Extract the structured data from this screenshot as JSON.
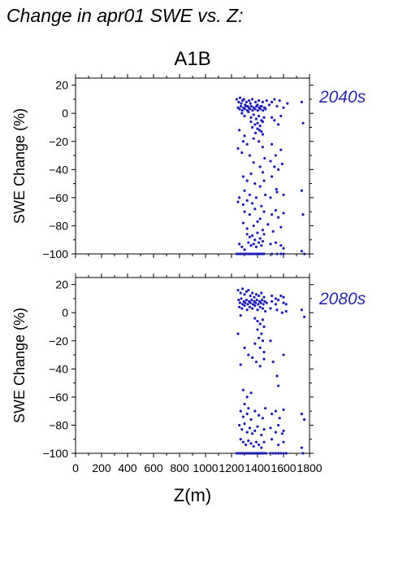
{
  "figure_title": "Change in apr01 SWE vs. Z:",
  "scenario": "A1B",
  "point_color": "#1f1fb4",
  "label_color": "#2a2aa8",
  "chart_data": [
    {
      "type": "scatter",
      "panel_label": "2040s",
      "ylabel": "SWE Change (%)",
      "xlabel": "",
      "xlim": [
        0,
        1800
      ],
      "ylim": [
        -100,
        25
      ],
      "xticks": [
        "0",
        "200",
        "400",
        "600",
        "800",
        "1000",
        "1200",
        "1400",
        "1600",
        "1800"
      ],
      "yticks": [
        "20",
        "0",
        "−20",
        "−40",
        "−60",
        "−80",
        "−100"
      ],
      "grid": false,
      "points": [
        [
          1240,
          10
        ],
        [
          1255,
          8
        ],
        [
          1265,
          11
        ],
        [
          1275,
          7
        ],
        [
          1285,
          9
        ],
        [
          1295,
          10
        ],
        [
          1305,
          6
        ],
        [
          1315,
          8
        ],
        [
          1325,
          5
        ],
        [
          1335,
          9
        ],
        [
          1345,
          7
        ],
        [
          1360,
          10
        ],
        [
          1370,
          4
        ],
        [
          1385,
          8
        ],
        [
          1400,
          6
        ],
        [
          1410,
          9
        ],
        [
          1425,
          5
        ],
        [
          1440,
          8
        ],
        [
          1455,
          4
        ],
        [
          1470,
          9
        ],
        [
          1490,
          6
        ],
        [
          1510,
          8
        ],
        [
          1530,
          10
        ],
        [
          1550,
          5
        ],
        [
          1570,
          9
        ],
        [
          1600,
          4
        ],
        [
          1630,
          7
        ],
        [
          1740,
          8
        ],
        [
          1250,
          4
        ],
        [
          1262,
          3
        ],
        [
          1272,
          5
        ],
        [
          1282,
          2
        ],
        [
          1292,
          4
        ],
        [
          1302,
          3
        ],
        [
          1312,
          5
        ],
        [
          1322,
          2
        ],
        [
          1332,
          4
        ],
        [
          1342,
          3
        ],
        [
          1352,
          5
        ],
        [
          1362,
          2
        ],
        [
          1372,
          4
        ],
        [
          1382,
          3
        ],
        [
          1392,
          5
        ],
        [
          1402,
          2
        ],
        [
          1412,
          4
        ],
        [
          1422,
          3
        ],
        [
          1432,
          5
        ],
        [
          1442,
          2
        ],
        [
          1452,
          4
        ],
        [
          1462,
          3
        ],
        [
          1280,
          0
        ],
        [
          1300,
          -2
        ],
        [
          1330,
          1
        ],
        [
          1350,
          -3
        ],
        [
          1370,
          -1
        ],
        [
          1390,
          -4
        ],
        [
          1410,
          -2
        ],
        [
          1430,
          -5
        ],
        [
          1450,
          -3
        ],
        [
          1350,
          -6
        ],
        [
          1380,
          -8
        ],
        [
          1400,
          -7
        ],
        [
          1420,
          -9
        ],
        [
          1440,
          -6
        ],
        [
          1360,
          -10
        ],
        [
          1415,
          -12
        ],
        [
          1385,
          -14
        ],
        [
          1440,
          -15
        ],
        [
          1400,
          -11
        ],
        [
          1430,
          -13
        ],
        [
          1510,
          -3
        ],
        [
          1530,
          -5
        ],
        [
          1560,
          -8
        ],
        [
          1580,
          -2
        ],
        [
          1750,
          -7
        ],
        [
          1260,
          -12
        ],
        [
          1300,
          -16
        ],
        [
          1290,
          -20
        ],
        [
          1320,
          -22
        ],
        [
          1250,
          -25
        ],
        [
          1280,
          -28
        ],
        [
          1340,
          -30
        ],
        [
          1370,
          -18
        ],
        [
          1410,
          -20
        ],
        [
          1440,
          -24
        ],
        [
          1455,
          -32
        ],
        [
          1510,
          -22
        ],
        [
          1540,
          -30
        ],
        [
          1580,
          -26
        ],
        [
          1370,
          -35
        ],
        [
          1420,
          -38
        ],
        [
          1440,
          -42
        ],
        [
          1500,
          -34
        ],
        [
          1530,
          -38
        ],
        [
          1560,
          -40
        ],
        [
          1590,
          -36
        ],
        [
          1290,
          -45
        ],
        [
          1320,
          -48
        ],
        [
          1350,
          -43
        ],
        [
          1380,
          -50
        ],
        [
          1420,
          -52
        ],
        [
          1450,
          -48
        ],
        [
          1510,
          -45
        ],
        [
          1545,
          -54
        ],
        [
          1300,
          -55
        ],
        [
          1340,
          -58
        ],
        [
          1260,
          -60
        ],
        [
          1250,
          -63
        ],
        [
          1290,
          -65
        ],
        [
          1320,
          -62
        ],
        [
          1360,
          -64
        ],
        [
          1390,
          -60
        ],
        [
          1430,
          -66
        ],
        [
          1460,
          -58
        ],
        [
          1500,
          -60
        ],
        [
          1550,
          -56
        ],
        [
          1600,
          -58
        ],
        [
          1740,
          -55
        ],
        [
          1300,
          -70
        ],
        [
          1340,
          -72
        ],
        [
          1380,
          -68
        ],
        [
          1420,
          -75
        ],
        [
          1450,
          -70
        ],
        [
          1510,
          -72
        ],
        [
          1540,
          -69
        ],
        [
          1560,
          -74
        ],
        [
          1600,
          -71
        ],
        [
          1750,
          -72
        ],
        [
          1290,
          -78
        ],
        [
          1320,
          -82
        ],
        [
          1370,
          -80
        ],
        [
          1400,
          -77
        ],
        [
          1440,
          -83
        ],
        [
          1480,
          -79
        ],
        [
          1520,
          -84
        ],
        [
          1580,
          -81
        ],
        [
          1320,
          -86
        ],
        [
          1340,
          -88
        ],
        [
          1360,
          -87
        ],
        [
          1380,
          -90
        ],
        [
          1400,
          -85
        ],
        [
          1420,
          -89
        ],
        [
          1440,
          -91
        ],
        [
          1450,
          -86
        ],
        [
          1330,
          -92
        ],
        [
          1350,
          -94
        ],
        [
          1370,
          -93
        ],
        [
          1390,
          -95
        ],
        [
          1410,
          -92
        ],
        [
          1430,
          -94
        ],
        [
          1260,
          -93
        ],
        [
          1280,
          -95
        ],
        [
          1300,
          -97
        ],
        [
          1500,
          -93
        ],
        [
          1540,
          -92
        ],
        [
          1580,
          -94
        ],
        [
          1600,
          -96
        ],
        [
          1240,
          -100
        ],
        [
          1255,
          -100
        ],
        [
          1270,
          -100
        ],
        [
          1285,
          -100
        ],
        [
          1300,
          -100
        ],
        [
          1315,
          -100
        ],
        [
          1330,
          -100
        ],
        [
          1345,
          -100
        ],
        [
          1360,
          -100
        ],
        [
          1375,
          -100
        ],
        [
          1390,
          -100
        ],
        [
          1405,
          -100
        ],
        [
          1420,
          -100
        ],
        [
          1435,
          -100
        ],
        [
          1450,
          -100
        ],
        [
          1510,
          -100
        ],
        [
          1550,
          -100
        ],
        [
          1580,
          -100
        ],
        [
          1600,
          -100
        ],
        [
          1740,
          -98
        ],
        [
          1760,
          -100
        ]
      ]
    },
    {
      "type": "scatter",
      "panel_label": "2080s",
      "ylabel": "SWE Change (%)",
      "xlabel": "Z(m)",
      "xlim": [
        0,
        1800
      ],
      "ylim": [
        -100,
        25
      ],
      "xticks": [
        "0",
        "200",
        "400",
        "600",
        "800",
        "1000",
        "1200",
        "1400",
        "1600",
        "1800"
      ],
      "yticks": [
        "20",
        "0",
        "−20",
        "−40",
        "−60",
        "−80",
        "−100"
      ],
      "grid": false,
      "points": [
        [
          1250,
          16
        ],
        [
          1270,
          14
        ],
        [
          1285,
          17
        ],
        [
          1300,
          13
        ],
        [
          1315,
          15
        ],
        [
          1330,
          16
        ],
        [
          1345,
          12
        ],
        [
          1360,
          14
        ],
        [
          1375,
          11
        ],
        [
          1390,
          13
        ],
        [
          1410,
          12
        ],
        [
          1430,
          14
        ],
        [
          1450,
          11
        ],
        [
          1510,
          12
        ],
        [
          1540,
          10
        ],
        [
          1580,
          12
        ],
        [
          1600,
          11
        ],
        [
          1255,
          9
        ],
        [
          1265,
          7
        ],
        [
          1275,
          10
        ],
        [
          1285,
          6
        ],
        [
          1295,
          8
        ],
        [
          1305,
          7
        ],
        [
          1315,
          9
        ],
        [
          1325,
          6
        ],
        [
          1335,
          8
        ],
        [
          1345,
          7
        ],
        [
          1355,
          9
        ],
        [
          1365,
          6
        ],
        [
          1375,
          8
        ],
        [
          1385,
          7
        ],
        [
          1395,
          9
        ],
        [
          1405,
          6
        ],
        [
          1415,
          8
        ],
        [
          1425,
          7
        ],
        [
          1435,
          9
        ],
        [
          1445,
          6
        ],
        [
          1455,
          8
        ],
        [
          1470,
          7
        ],
        [
          1510,
          8
        ],
        [
          1540,
          6
        ],
        [
          1560,
          9
        ],
        [
          1600,
          7
        ],
        [
          1620,
          6
        ],
        [
          1260,
          4
        ],
        [
          1280,
          3
        ],
        [
          1300,
          5
        ],
        [
          1320,
          2
        ],
        [
          1340,
          4
        ],
        [
          1360,
          3
        ],
        [
          1380,
          5
        ],
        [
          1400,
          2
        ],
        [
          1420,
          4
        ],
        [
          1440,
          3
        ],
        [
          1460,
          1
        ],
        [
          1500,
          3
        ],
        [
          1550,
          2
        ],
        [
          1590,
          0
        ],
        [
          1620,
          1
        ],
        [
          1740,
          2
        ],
        [
          1760,
          -3
        ],
        [
          1270,
          -2
        ],
        [
          1380,
          -4
        ],
        [
          1400,
          -6
        ],
        [
          1420,
          -8
        ],
        [
          1440,
          -5
        ],
        [
          1450,
          -10
        ],
        [
          1400,
          -12
        ],
        [
          1430,
          -15
        ],
        [
          1410,
          -18
        ],
        [
          1440,
          -20
        ],
        [
          1380,
          -22
        ],
        [
          1420,
          -25
        ],
        [
          1450,
          -28
        ],
        [
          1300,
          -25
        ],
        [
          1330,
          -30
        ],
        [
          1360,
          -32
        ],
        [
          1390,
          -35
        ],
        [
          1420,
          -38
        ],
        [
          1450,
          -33
        ],
        [
          1500,
          -20
        ],
        [
          1520,
          -35
        ],
        [
          1550,
          -45
        ],
        [
          1560,
          -52
        ],
        [
          1600,
          -30
        ],
        [
          1250,
          -15
        ],
        [
          1270,
          -37
        ],
        [
          1290,
          -55
        ],
        [
          1320,
          -60
        ],
        [
          1350,
          -57
        ],
        [
          1300,
          -65
        ],
        [
          1330,
          -68
        ],
        [
          1270,
          -70
        ],
        [
          1290,
          -74
        ],
        [
          1320,
          -72
        ],
        [
          1350,
          -76
        ],
        [
          1380,
          -70
        ],
        [
          1410,
          -73
        ],
        [
          1440,
          -75
        ],
        [
          1460,
          -68
        ],
        [
          1510,
          -72
        ],
        [
          1540,
          -70
        ],
        [
          1570,
          -75
        ],
        [
          1600,
          -69
        ],
        [
          1740,
          -72
        ],
        [
          1760,
          -76
        ],
        [
          1260,
          -80
        ],
        [
          1280,
          -83
        ],
        [
          1300,
          -79
        ],
        [
          1320,
          -85
        ],
        [
          1340,
          -82
        ],
        [
          1360,
          -86
        ],
        [
          1380,
          -84
        ],
        [
          1400,
          -81
        ],
        [
          1430,
          -87
        ],
        [
          1450,
          -83
        ],
        [
          1500,
          -82
        ],
        [
          1540,
          -85
        ],
        [
          1560,
          -80
        ],
        [
          1590,
          -86
        ],
        [
          1600,
          -84
        ],
        [
          1270,
          -90
        ],
        [
          1290,
          -92
        ],
        [
          1310,
          -94
        ],
        [
          1330,
          -91
        ],
        [
          1350,
          -93
        ],
        [
          1370,
          -95
        ],
        [
          1390,
          -92
        ],
        [
          1410,
          -94
        ],
        [
          1430,
          -96
        ],
        [
          1450,
          -92
        ],
        [
          1510,
          -90
        ],
        [
          1560,
          -94
        ],
        [
          1600,
          -92
        ],
        [
          1740,
          -96
        ],
        [
          1240,
          -100
        ],
        [
          1255,
          -100
        ],
        [
          1270,
          -100
        ],
        [
          1285,
          -100
        ],
        [
          1300,
          -100
        ],
        [
          1315,
          -100
        ],
        [
          1330,
          -100
        ],
        [
          1345,
          -100
        ],
        [
          1360,
          -100
        ],
        [
          1375,
          -100
        ],
        [
          1390,
          -100
        ],
        [
          1405,
          -100
        ],
        [
          1420,
          -100
        ],
        [
          1435,
          -100
        ],
        [
          1450,
          -100
        ],
        [
          1465,
          -100
        ],
        [
          1500,
          -100
        ],
        [
          1520,
          -100
        ],
        [
          1540,
          -100
        ],
        [
          1560,
          -100
        ],
        [
          1580,
          -100
        ],
        [
          1600,
          -100
        ],
        [
          1620,
          -100
        ],
        [
          1750,
          -100
        ]
      ]
    }
  ]
}
